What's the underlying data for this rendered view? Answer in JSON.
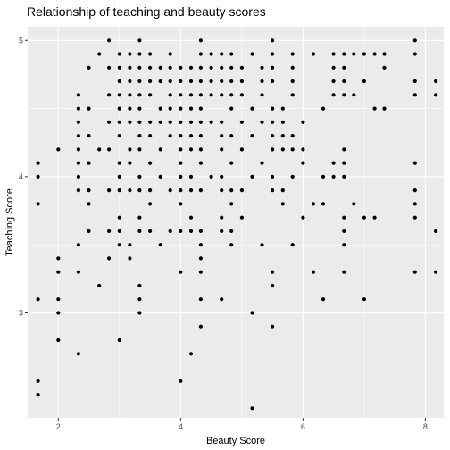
{
  "chart_data": {
    "type": "scatter",
    "title": "Relationship of teaching and beauty scores",
    "xlabel": "Beauty Score",
    "ylabel": "Teaching Score",
    "xlim": [
      1.5,
      8.3
    ],
    "ylim": [
      2.23,
      5.1
    ],
    "x_ticks": [
      2,
      4,
      6,
      8
    ],
    "y_ticks": [
      3,
      4,
      5
    ],
    "colors": {
      "panel": "#ebebeb",
      "grid": "#ffffff",
      "point": "#000000"
    },
    "points": [
      [
        5.17,
        2.3
      ],
      [
        4.0,
        2.5
      ],
      [
        1.67,
        2.4
      ],
      [
        1.67,
        2.5
      ],
      [
        2.33,
        2.7
      ],
      [
        4.17,
        2.7
      ],
      [
        3.0,
        2.8
      ],
      [
        2.0,
        2.8
      ],
      [
        4.33,
        2.9
      ],
      [
        5.5,
        2.9
      ],
      [
        1.67,
        3.1
      ],
      [
        2.0,
        3.1
      ],
      [
        2.0,
        3.0
      ],
      [
        3.33,
        3.1
      ],
      [
        3.33,
        3.0
      ],
      [
        5.17,
        3.0
      ],
      [
        6.33,
        3.1
      ],
      [
        7.0,
        3.1
      ],
      [
        4.33,
        3.1
      ],
      [
        4.67,
        3.1
      ],
      [
        2.0,
        3.3
      ],
      [
        2.0,
        3.4
      ],
      [
        2.33,
        3.3
      ],
      [
        2.67,
        3.2
      ],
      [
        3.17,
        3.4
      ],
      [
        3.33,
        3.2
      ],
      [
        4.0,
        3.3
      ],
      [
        4.33,
        3.3
      ],
      [
        5.5,
        3.3
      ],
      [
        5.5,
        3.2
      ],
      [
        6.17,
        3.3
      ],
      [
        6.67,
        3.3
      ],
      [
        7.83,
        3.3
      ],
      [
        8.17,
        3.3
      ],
      [
        4.33,
        3.4
      ],
      [
        2.83,
        3.4
      ],
      [
        2.33,
        3.5
      ],
      [
        3.0,
        3.5
      ],
      [
        3.17,
        3.5
      ],
      [
        3.67,
        3.5
      ],
      [
        4.33,
        3.5
      ],
      [
        4.83,
        3.5
      ],
      [
        5.33,
        3.5
      ],
      [
        5.83,
        3.5
      ],
      [
        6.67,
        3.5
      ],
      [
        2.5,
        3.6
      ],
      [
        2.83,
        3.6
      ],
      [
        3.0,
        3.6
      ],
      [
        3.33,
        3.6
      ],
      [
        3.5,
        3.6
      ],
      [
        3.83,
        3.6
      ],
      [
        4.0,
        3.6
      ],
      [
        4.17,
        3.6
      ],
      [
        4.33,
        3.6
      ],
      [
        4.67,
        3.6
      ],
      [
        4.83,
        3.6
      ],
      [
        6.67,
        3.6
      ],
      [
        8.17,
        3.6
      ],
      [
        6.67,
        3.7
      ],
      [
        5.0,
        3.7
      ],
      [
        4.67,
        3.7
      ],
      [
        3.0,
        3.7
      ],
      [
        3.33,
        3.7
      ],
      [
        4.17,
        3.7
      ],
      [
        6.0,
        3.7
      ],
      [
        7.0,
        3.7
      ],
      [
        7.17,
        3.7
      ],
      [
        7.83,
        3.7
      ],
      [
        4.0,
        3.8
      ],
      [
        1.67,
        3.8
      ],
      [
        2.5,
        3.8
      ],
      [
        3.5,
        3.8
      ],
      [
        4.83,
        3.8
      ],
      [
        5.67,
        3.8
      ],
      [
        6.17,
        3.8
      ],
      [
        6.33,
        3.8
      ],
      [
        6.83,
        3.8
      ],
      [
        7.83,
        3.8
      ],
      [
        5.67,
        3.9
      ],
      [
        2.33,
        3.9
      ],
      [
        2.5,
        3.9
      ],
      [
        2.83,
        3.9
      ],
      [
        3.0,
        3.9
      ],
      [
        3.17,
        3.9
      ],
      [
        3.33,
        3.9
      ],
      [
        3.5,
        3.9
      ],
      [
        3.83,
        3.9
      ],
      [
        4.0,
        3.9
      ],
      [
        4.17,
        3.9
      ],
      [
        4.33,
        3.9
      ],
      [
        4.67,
        3.9
      ],
      [
        4.83,
        3.9
      ],
      [
        5.0,
        3.9
      ],
      [
        5.5,
        3.9
      ],
      [
        7.83,
        3.9
      ],
      [
        1.67,
        4.0
      ],
      [
        2.33,
        4.0
      ],
      [
        3.0,
        4.0
      ],
      [
        3.33,
        4.0
      ],
      [
        3.67,
        4.0
      ],
      [
        4.0,
        4.0
      ],
      [
        4.17,
        4.0
      ],
      [
        4.5,
        4.0
      ],
      [
        4.67,
        4.0
      ],
      [
        5.17,
        4.0
      ],
      [
        5.5,
        4.0
      ],
      [
        5.83,
        4.0
      ],
      [
        6.33,
        4.0
      ],
      [
        6.5,
        4.0
      ],
      [
        6.67,
        4.0
      ],
      [
        1.67,
        4.1
      ],
      [
        2.33,
        4.1
      ],
      [
        2.5,
        4.1
      ],
      [
        3.0,
        4.1
      ],
      [
        3.17,
        4.1
      ],
      [
        3.5,
        4.1
      ],
      [
        4.0,
        4.1
      ],
      [
        4.33,
        4.1
      ],
      [
        4.83,
        4.1
      ],
      [
        5.33,
        4.1
      ],
      [
        6.0,
        4.1
      ],
      [
        6.5,
        4.1
      ],
      [
        6.67,
        4.1
      ],
      [
        7.83,
        4.1
      ],
      [
        2.0,
        4.2
      ],
      [
        2.33,
        4.2
      ],
      [
        2.67,
        4.2
      ],
      [
        2.83,
        4.2
      ],
      [
        3.17,
        4.2
      ],
      [
        3.33,
        4.2
      ],
      [
        3.67,
        4.2
      ],
      [
        4.0,
        4.2
      ],
      [
        4.17,
        4.2
      ],
      [
        4.33,
        4.2
      ],
      [
        4.67,
        4.2
      ],
      [
        5.0,
        4.2
      ],
      [
        5.5,
        4.2
      ],
      [
        5.67,
        4.2
      ],
      [
        5.83,
        4.2
      ],
      [
        6.0,
        4.2
      ],
      [
        6.67,
        4.2
      ],
      [
        2.33,
        4.3
      ],
      [
        2.5,
        4.3
      ],
      [
        3.0,
        4.3
      ],
      [
        3.33,
        4.3
      ],
      [
        3.5,
        4.3
      ],
      [
        3.83,
        4.3
      ],
      [
        4.0,
        4.3
      ],
      [
        4.17,
        4.3
      ],
      [
        4.33,
        4.3
      ],
      [
        4.67,
        4.3
      ],
      [
        4.83,
        4.3
      ],
      [
        5.17,
        4.3
      ],
      [
        5.5,
        4.3
      ],
      [
        5.67,
        4.3
      ],
      [
        5.83,
        4.3
      ],
      [
        2.33,
        4.4
      ],
      [
        2.83,
        4.4
      ],
      [
        3.0,
        4.4
      ],
      [
        3.17,
        4.4
      ],
      [
        3.33,
        4.4
      ],
      [
        3.5,
        4.4
      ],
      [
        3.67,
        4.4
      ],
      [
        3.83,
        4.4
      ],
      [
        4.0,
        4.4
      ],
      [
        4.17,
        4.4
      ],
      [
        4.33,
        4.4
      ],
      [
        4.5,
        4.4
      ],
      [
        4.67,
        4.4
      ],
      [
        5.0,
        4.4
      ],
      [
        5.33,
        4.4
      ],
      [
        5.5,
        4.4
      ],
      [
        5.67,
        4.4
      ],
      [
        6.0,
        4.4
      ],
      [
        2.33,
        4.5
      ],
      [
        2.5,
        4.5
      ],
      [
        3.0,
        4.5
      ],
      [
        3.17,
        4.5
      ],
      [
        3.33,
        4.5
      ],
      [
        3.67,
        4.5
      ],
      [
        3.83,
        4.5
      ],
      [
        4.0,
        4.5
      ],
      [
        4.17,
        4.5
      ],
      [
        4.33,
        4.5
      ],
      [
        4.83,
        4.5
      ],
      [
        5.17,
        4.5
      ],
      [
        5.5,
        4.5
      ],
      [
        5.67,
        4.5
      ],
      [
        6.33,
        4.5
      ],
      [
        7.17,
        4.5
      ],
      [
        7.33,
        4.5
      ],
      [
        2.33,
        4.6
      ],
      [
        2.83,
        4.6
      ],
      [
        3.0,
        4.6
      ],
      [
        3.17,
        4.6
      ],
      [
        3.33,
        4.6
      ],
      [
        3.5,
        4.6
      ],
      [
        3.83,
        4.6
      ],
      [
        4.0,
        4.6
      ],
      [
        4.17,
        4.6
      ],
      [
        4.33,
        4.6
      ],
      [
        4.5,
        4.6
      ],
      [
        4.67,
        4.6
      ],
      [
        4.83,
        4.6
      ],
      [
        5.0,
        4.6
      ],
      [
        5.33,
        4.6
      ],
      [
        5.83,
        4.6
      ],
      [
        6.5,
        4.6
      ],
      [
        6.67,
        4.6
      ],
      [
        6.83,
        4.6
      ],
      [
        7.83,
        4.6
      ],
      [
        8.17,
        4.6
      ],
      [
        3.0,
        4.7
      ],
      [
        3.17,
        4.7
      ],
      [
        3.33,
        4.7
      ],
      [
        3.5,
        4.7
      ],
      [
        3.67,
        4.7
      ],
      [
        3.83,
        4.7
      ],
      [
        4.0,
        4.7
      ],
      [
        4.17,
        4.7
      ],
      [
        4.33,
        4.7
      ],
      [
        4.5,
        4.7
      ],
      [
        4.67,
        4.7
      ],
      [
        4.83,
        4.7
      ],
      [
        5.0,
        4.7
      ],
      [
        5.33,
        4.7
      ],
      [
        5.5,
        4.7
      ],
      [
        5.83,
        4.7
      ],
      [
        6.5,
        4.7
      ],
      [
        6.67,
        4.7
      ],
      [
        7.0,
        4.7
      ],
      [
        7.83,
        4.7
      ],
      [
        8.17,
        4.7
      ],
      [
        2.5,
        4.8
      ],
      [
        2.83,
        4.8
      ],
      [
        3.0,
        4.8
      ],
      [
        3.17,
        4.8
      ],
      [
        3.33,
        4.8
      ],
      [
        3.5,
        4.8
      ],
      [
        3.67,
        4.8
      ],
      [
        3.83,
        4.8
      ],
      [
        4.0,
        4.8
      ],
      [
        4.17,
        4.8
      ],
      [
        4.33,
        4.8
      ],
      [
        4.5,
        4.8
      ],
      [
        4.67,
        4.8
      ],
      [
        4.83,
        4.8
      ],
      [
        5.0,
        4.8
      ],
      [
        5.33,
        4.8
      ],
      [
        5.5,
        4.8
      ],
      [
        5.83,
        4.8
      ],
      [
        6.5,
        4.8
      ],
      [
        6.67,
        4.8
      ],
      [
        7.33,
        4.8
      ],
      [
        2.67,
        4.9
      ],
      [
        3.0,
        4.9
      ],
      [
        3.17,
        4.9
      ],
      [
        3.33,
        4.9
      ],
      [
        3.5,
        4.9
      ],
      [
        3.83,
        4.9
      ],
      [
        4.33,
        4.9
      ],
      [
        4.5,
        4.9
      ],
      [
        4.67,
        4.9
      ],
      [
        4.83,
        4.9
      ],
      [
        5.17,
        4.9
      ],
      [
        5.5,
        4.9
      ],
      [
        5.83,
        4.9
      ],
      [
        6.17,
        4.9
      ],
      [
        6.5,
        4.9
      ],
      [
        6.67,
        4.9
      ],
      [
        6.83,
        4.9
      ],
      [
        7.0,
        4.9
      ],
      [
        7.17,
        4.9
      ],
      [
        7.33,
        4.9
      ],
      [
        7.83,
        4.9
      ],
      [
        2.83,
        5.0
      ],
      [
        3.33,
        5.0
      ],
      [
        4.33,
        5.0
      ],
      [
        5.5,
        5.0
      ],
      [
        7.83,
        5.0
      ]
    ]
  }
}
